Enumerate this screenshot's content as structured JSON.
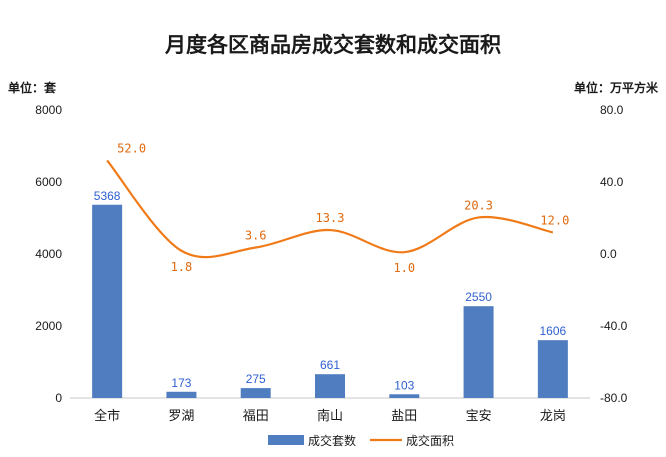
{
  "chart_data": {
    "type": "bar+line",
    "title": "月度各区商品房成交套数和成交面积",
    "left_unit": "单位：套",
    "right_unit": "单位：万平方米",
    "categories": [
      "全市",
      "罗湖",
      "福田",
      "南山",
      "盐田",
      "宝安",
      "龙岗"
    ],
    "series": [
      {
        "name": "成交套数",
        "type": "bar",
        "axis": "left",
        "values": [
          5368,
          173,
          275,
          661,
          103,
          2550,
          1606
        ],
        "labels": [
          "5368",
          "173",
          "275",
          "661",
          "103",
          "2550",
          "1606"
        ]
      },
      {
        "name": "成交面积",
        "type": "line",
        "axis": "right",
        "values": [
          52.0,
          1.8,
          3.6,
          13.3,
          1.0,
          20.3,
          12.0
        ],
        "labels": [
          "52.0",
          "1.8",
          "3.6",
          "13.3",
          "1.0",
          "20.3",
          "12.0"
        ]
      }
    ],
    "left_ylim": [
      0,
      8000
    ],
    "left_ticks": [
      "8000",
      "6000",
      "4000",
      "2000",
      "0"
    ],
    "right_ylim": [
      -80,
      80
    ],
    "right_ticks": [
      "80.0",
      "40.0",
      "0.0",
      "-40.0",
      "-80.0"
    ],
    "grid": false,
    "legend_position": "bottom-center",
    "colors": {
      "bar": "#4f7dc0",
      "bar_label": "#2f5fd0",
      "line": "#f07a18",
      "line_label": "#e06a10",
      "axis": "#c8c8c8"
    }
  }
}
